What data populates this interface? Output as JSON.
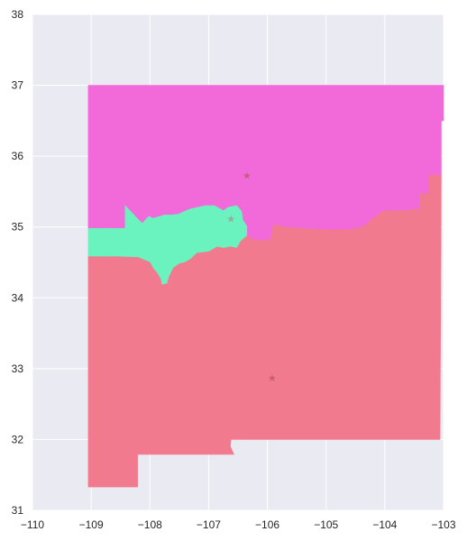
{
  "chart_data": {
    "type": "map",
    "xlim": [
      -110,
      -103
    ],
    "ylim": [
      31,
      38
    ],
    "x_ticks": [
      -110,
      -109,
      -108,
      -107,
      -106,
      -105,
      -104,
      -103
    ],
    "y_ticks": [
      31,
      32,
      33,
      34,
      35,
      36,
      37,
      38
    ],
    "x_tick_labels": [
      "−110",
      "−109",
      "−108",
      "−107",
      "−106",
      "−105",
      "−104",
      "−103"
    ],
    "y_tick_labels": [
      "31",
      "32",
      "33",
      "34",
      "35",
      "36",
      "37",
      "38"
    ],
    "grid": true,
    "colors": {
      "background": "#eaeaf2",
      "grid": "#ffffff",
      "north_region": "#f26ad9",
      "central_region": "#6af2bf",
      "south_region": "#f27a8e",
      "marker": "#c0607a"
    },
    "regions": [
      {
        "id": "north",
        "color": "#f26ad9",
        "polygon": [
          [
            -109.05,
            37.0
          ],
          [
            -103.0,
            37.0
          ],
          [
            -103.0,
            36.5
          ],
          [
            -103.04,
            36.5
          ],
          [
            -103.04,
            35.73
          ],
          [
            -103.25,
            35.73
          ],
          [
            -103.25,
            35.47
          ],
          [
            -103.4,
            35.47
          ],
          [
            -103.4,
            35.25
          ],
          [
            -103.55,
            35.25
          ],
          [
            -103.55,
            35.23
          ],
          [
            -104.0,
            35.23
          ],
          [
            -104.1,
            35.18
          ],
          [
            -104.38,
            35.0
          ],
          [
            -104.6,
            34.96
          ],
          [
            -105.0,
            34.96
          ],
          [
            -105.4,
            34.98
          ],
          [
            -105.7,
            35.0
          ],
          [
            -105.9,
            35.03
          ],
          [
            -105.92,
            34.86
          ],
          [
            -106.0,
            34.81
          ],
          [
            -106.2,
            34.81
          ],
          [
            -106.35,
            34.87
          ],
          [
            -106.35,
            35.01
          ],
          [
            -106.42,
            35.1
          ],
          [
            -106.44,
            35.22
          ],
          [
            -106.52,
            35.3
          ],
          [
            -106.66,
            35.28
          ],
          [
            -106.75,
            35.23
          ],
          [
            -106.9,
            35.3
          ],
          [
            -107.05,
            35.3
          ],
          [
            -107.33,
            35.25
          ],
          [
            -107.52,
            35.18
          ],
          [
            -107.63,
            35.17
          ],
          [
            -107.75,
            35.17
          ],
          [
            -107.95,
            35.12
          ],
          [
            -108.02,
            35.15
          ],
          [
            -108.13,
            35.05
          ],
          [
            -108.25,
            35.15
          ],
          [
            -108.42,
            35.3
          ],
          [
            -108.42,
            34.98
          ],
          [
            -109.05,
            34.98
          ]
        ]
      },
      {
        "id": "central",
        "color": "#6af2bf",
        "polygon": [
          [
            -109.05,
            34.98
          ],
          [
            -108.42,
            34.98
          ],
          [
            -108.42,
            35.3
          ],
          [
            -108.25,
            35.15
          ],
          [
            -108.13,
            35.05
          ],
          [
            -108.02,
            35.15
          ],
          [
            -107.95,
            35.12
          ],
          [
            -107.75,
            35.17
          ],
          [
            -107.63,
            35.17
          ],
          [
            -107.52,
            35.18
          ],
          [
            -107.33,
            35.25
          ],
          [
            -107.05,
            35.3
          ],
          [
            -106.9,
            35.3
          ],
          [
            -106.75,
            35.23
          ],
          [
            -106.66,
            35.28
          ],
          [
            -106.52,
            35.3
          ],
          [
            -106.44,
            35.22
          ],
          [
            -106.42,
            35.1
          ],
          [
            -106.35,
            35.01
          ],
          [
            -106.35,
            34.87
          ],
          [
            -106.45,
            34.8
          ],
          [
            -106.52,
            34.7
          ],
          [
            -106.62,
            34.72
          ],
          [
            -106.75,
            34.7
          ],
          [
            -106.85,
            34.72
          ],
          [
            -107.0,
            34.65
          ],
          [
            -107.2,
            34.63
          ],
          [
            -107.3,
            34.55
          ],
          [
            -107.4,
            34.5
          ],
          [
            -107.5,
            34.48
          ],
          [
            -107.6,
            34.42
          ],
          [
            -107.68,
            34.28
          ],
          [
            -107.7,
            34.2
          ],
          [
            -107.8,
            34.18
          ],
          [
            -107.82,
            34.27
          ],
          [
            -107.88,
            34.35
          ],
          [
            -107.95,
            34.42
          ],
          [
            -108.0,
            34.5
          ],
          [
            -108.2,
            34.57
          ],
          [
            -108.55,
            34.58
          ],
          [
            -109.05,
            34.58
          ]
        ]
      },
      {
        "id": "south",
        "color": "#f27a8e",
        "polygon": [
          [
            -109.05,
            34.58
          ],
          [
            -108.55,
            34.58
          ],
          [
            -108.2,
            34.57
          ],
          [
            -108.0,
            34.5
          ],
          [
            -107.95,
            34.42
          ],
          [
            -107.88,
            34.35
          ],
          [
            -107.82,
            34.27
          ],
          [
            -107.8,
            34.18
          ],
          [
            -107.7,
            34.2
          ],
          [
            -107.68,
            34.28
          ],
          [
            -107.6,
            34.42
          ],
          [
            -107.5,
            34.48
          ],
          [
            -107.4,
            34.5
          ],
          [
            -107.3,
            34.55
          ],
          [
            -107.2,
            34.63
          ],
          [
            -107.0,
            34.65
          ],
          [
            -106.85,
            34.72
          ],
          [
            -106.75,
            34.7
          ],
          [
            -106.62,
            34.72
          ],
          [
            -106.52,
            34.7
          ],
          [
            -106.45,
            34.8
          ],
          [
            -106.35,
            34.87
          ],
          [
            -106.2,
            34.81
          ],
          [
            -106.0,
            34.81
          ],
          [
            -105.92,
            34.86
          ],
          [
            -105.9,
            35.03
          ],
          [
            -105.7,
            35.0
          ],
          [
            -105.4,
            34.98
          ],
          [
            -105.0,
            34.96
          ],
          [
            -104.6,
            34.96
          ],
          [
            -104.38,
            35.0
          ],
          [
            -104.1,
            35.18
          ],
          [
            -104.0,
            35.23
          ],
          [
            -103.55,
            35.23
          ],
          [
            -103.55,
            35.25
          ],
          [
            -103.4,
            35.25
          ],
          [
            -103.4,
            35.47
          ],
          [
            -103.25,
            35.47
          ],
          [
            -103.25,
            35.73
          ],
          [
            -103.04,
            35.73
          ],
          [
            -103.06,
            32.0
          ],
          [
            -106.62,
            32.0
          ],
          [
            -106.63,
            31.9
          ],
          [
            -106.57,
            31.79
          ],
          [
            -108.21,
            31.79
          ],
          [
            -108.21,
            31.33
          ],
          [
            -109.05,
            31.33
          ]
        ]
      }
    ],
    "markers": [
      {
        "lon": -106.35,
        "lat": 35.73,
        "symbol": "★",
        "color": "#c0607a"
      },
      {
        "lon": -106.62,
        "lat": 35.12,
        "symbol": "★",
        "color": "#9aa99a"
      },
      {
        "lon": -105.92,
        "lat": 32.87,
        "symbol": "★",
        "color": "#c0607a"
      }
    ]
  }
}
